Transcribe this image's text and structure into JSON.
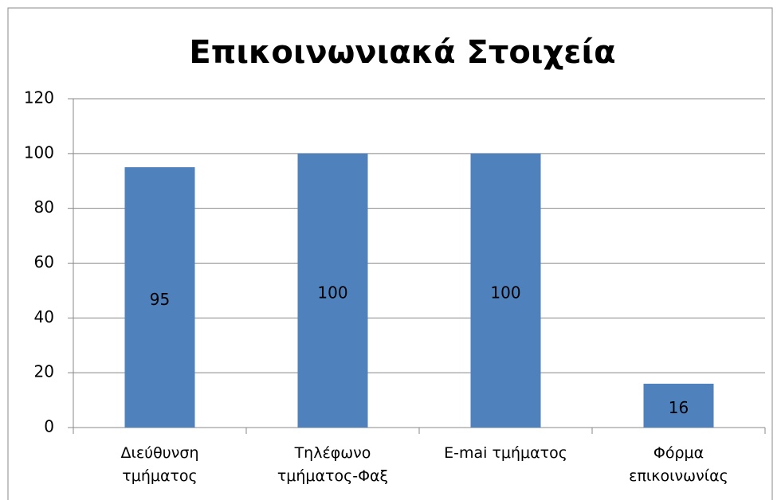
{
  "chart_data": {
    "type": "bar",
    "title": "Επικοινωνιακά Στοιχεία",
    "categories": [
      "Διεύθυνση\nτμήματος",
      "Τηλέφωνο\nτμήματος-Φαξ",
      "E-mai τμήματος",
      "Φόρμα\nεπικοινωνίας"
    ],
    "values": [
      95,
      100,
      100,
      16
    ],
    "color": "#4f81bd",
    "ylim": [
      0,
      120
    ],
    "yticks": [
      0,
      20,
      40,
      60,
      80,
      100,
      120
    ],
    "grid": true
  }
}
